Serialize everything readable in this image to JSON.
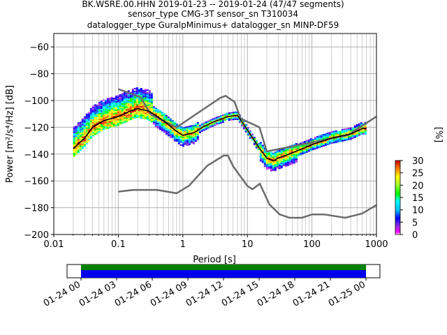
{
  "title": {
    "line1": "BK.WSRE.00.HHN   2019-01-23 -- 2019-01-24  (47/47 segments)",
    "line2": "sensor_type CMG-3T sensor_sn T310034",
    "line3": "datalogger_type GuralpMinimus+ datalogger_sn MINP-DF59"
  },
  "colors": {
    "noise_model": "#6b6b6b",
    "mean_curve": "#000000",
    "grid": "#b0b0b0",
    "timeline_green": "#008000",
    "timeline_blue": "#0000ee"
  },
  "chart_data": [
    {
      "type": "heatmap",
      "title": "",
      "xlabel": "Period [s]",
      "ylabel": "Power [m²/s⁴/Hz] [dB]",
      "x_scale": "log",
      "xlim": [
        0.01,
        1000
      ],
      "ylim": [
        -200,
        -50
      ],
      "x_ticks": [
        0.01,
        0.1,
        1,
        10,
        100,
        1000
      ],
      "x_tick_labels": [
        "0.01",
        "0.1",
        "1",
        "10",
        "100",
        "1000"
      ],
      "y_ticks": [
        -60,
        -80,
        -100,
        -120,
        -140,
        -160,
        -180,
        -200
      ],
      "y_tick_labels": [
        "−60",
        "−80",
        "−100",
        "−120",
        "−140",
        "−160",
        "−180",
        "−200"
      ],
      "grid": true,
      "colorbar": {
        "label": "[%]",
        "range": [
          0,
          30
        ],
        "ticks": [
          0,
          5,
          10,
          15,
          20,
          25,
          30
        ],
        "tick_labels": [
          "0",
          "5",
          "10",
          "15",
          "20",
          "25",
          "30"
        ]
      },
      "series": [
        {
          "name": "",
          "kind": "mean",
          "x": [
            0.02,
            0.03,
            0.04,
            0.06,
            0.1,
            0.15,
            0.2,
            0.3,
            0.5,
            0.8,
            1.0,
            1.5,
            2,
            3,
            5,
            7,
            10,
            15,
            20,
            25,
            30,
            50,
            100,
            200,
            400,
            600,
            700
          ],
          "y": [
            -136,
            -128,
            -120,
            -115,
            -112,
            -108,
            -106,
            -108,
            -115,
            -123,
            -126,
            -124,
            -120,
            -116,
            -112,
            -111,
            -122,
            -135,
            -143,
            -145,
            -143,
            -139,
            -133,
            -128,
            -125,
            -121,
            -121
          ]
        },
        {
          "name": "",
          "kind": "high_noise_model",
          "x": [
            0.1,
            0.22,
            0.32,
            0.8,
            3.8,
            4.6,
            6.3,
            7.9,
            15.4,
            20,
            354.8,
            1000
          ],
          "y": [
            -91.5,
            -97.4,
            -110.5,
            -120,
            -98,
            -96.5,
            -101,
            -113.5,
            -120,
            -138,
            -126,
            -112
          ]
        },
        {
          "name": "",
          "kind": "low_noise_model",
          "x": [
            0.1,
            0.17,
            0.4,
            0.8,
            1.24,
            2.4,
            4.3,
            5.0,
            6.0,
            10.0,
            12.0,
            15.6,
            21.9,
            31.6,
            45,
            70,
            101,
            154,
            328,
            600,
            1000
          ],
          "y": [
            -168,
            -166.7,
            -166.7,
            -169.2,
            -163.7,
            -148.6,
            -141.1,
            -141.1,
            -149,
            -163.8,
            -166.2,
            -162.1,
            -177.5,
            -185,
            -187.5,
            -187.5,
            -185,
            -185,
            -187.5,
            -184.4,
            -178
          ]
        }
      ]
    },
    {
      "type": "bar",
      "title": "",
      "x_tick_labels": [
        "01-24 00",
        "01-24 03",
        "01-24 06",
        "01-24 09",
        "01-24 12",
        "01-24 15",
        "01-24 18",
        "01-24 21",
        "01-25 00"
      ],
      "series": [
        {
          "name": "",
          "kind": "available_data",
          "start": "01-24 00",
          "end": "01-25 00"
        },
        {
          "name": "",
          "kind": "psd_segments",
          "start": "01-24 00",
          "end": "01-25 00"
        }
      ]
    }
  ]
}
